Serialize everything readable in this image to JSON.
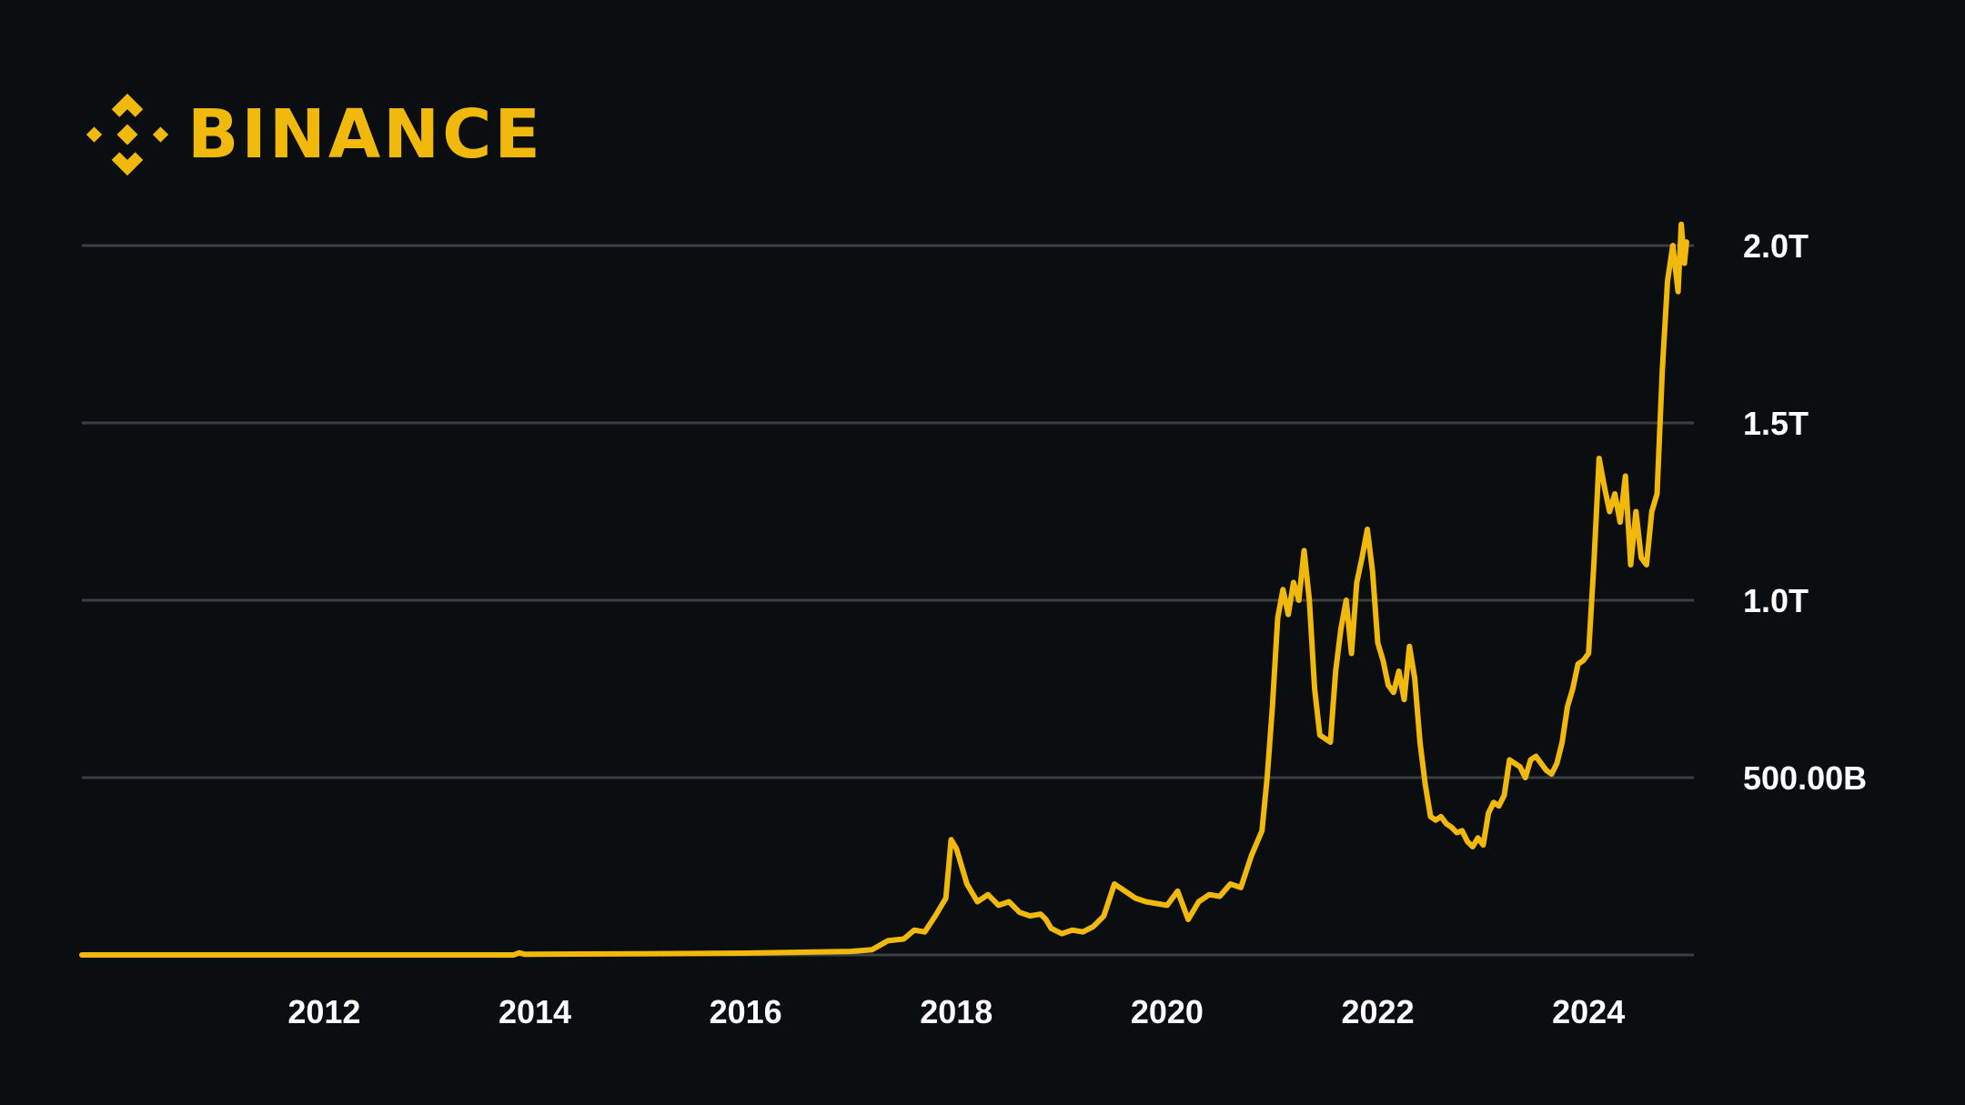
{
  "brand": {
    "name": "BINANCE",
    "accent_color": "#f0b90b",
    "icon": "binance-diamond-icon"
  },
  "theme": {
    "background": "#0b0e11",
    "gridline": "#3b3f45",
    "line": "#f0b90b",
    "text": "#ffffff"
  },
  "chart_data": {
    "type": "line",
    "title": "",
    "xlabel": "",
    "ylabel": "",
    "xlim": [
      2009.7,
      2025.0
    ],
    "ylim": [
      0,
      2000
    ],
    "y_unit": "billions",
    "grid": true,
    "legend": "none",
    "x_ticks": [
      {
        "value": 2012,
        "label": "2012"
      },
      {
        "value": 2014,
        "label": "2014"
      },
      {
        "value": 2016,
        "label": "2016"
      },
      {
        "value": 2018,
        "label": "2018"
      },
      {
        "value": 2020,
        "label": "2020"
      },
      {
        "value": 2022,
        "label": "2022"
      },
      {
        "value": 2024,
        "label": "2024"
      }
    ],
    "y_ticks": [
      {
        "value": 500,
        "label": "500.00B"
      },
      {
        "value": 1000,
        "label": "1.0T"
      },
      {
        "value": 1500,
        "label": "1.5T"
      },
      {
        "value": 2000,
        "label": "2.0T"
      }
    ],
    "series": [
      {
        "color": "#f0b90b",
        "points": [
          [
            2009.7,
            0
          ],
          [
            2012.0,
            0
          ],
          [
            2013.8,
            0
          ],
          [
            2013.85,
            6
          ],
          [
            2013.9,
            2
          ],
          [
            2015.0,
            3
          ],
          [
            2016.0,
            5
          ],
          [
            2017.0,
            10
          ],
          [
            2017.2,
            15
          ],
          [
            2017.35,
            40
          ],
          [
            2017.5,
            45
          ],
          [
            2017.6,
            70
          ],
          [
            2017.7,
            65
          ],
          [
            2017.8,
            110
          ],
          [
            2017.9,
            160
          ],
          [
            2017.95,
            325
          ],
          [
            2018.0,
            300
          ],
          [
            2018.1,
            200
          ],
          [
            2018.2,
            150
          ],
          [
            2018.3,
            170
          ],
          [
            2018.4,
            140
          ],
          [
            2018.5,
            150
          ],
          [
            2018.6,
            120
          ],
          [
            2018.7,
            110
          ],
          [
            2018.8,
            115
          ],
          [
            2018.85,
            100
          ],
          [
            2018.9,
            75
          ],
          [
            2019.0,
            60
          ],
          [
            2019.1,
            70
          ],
          [
            2019.2,
            65
          ],
          [
            2019.3,
            80
          ],
          [
            2019.4,
            110
          ],
          [
            2019.5,
            200
          ],
          [
            2019.6,
            180
          ],
          [
            2019.7,
            160
          ],
          [
            2019.8,
            150
          ],
          [
            2019.9,
            145
          ],
          [
            2020.0,
            140
          ],
          [
            2020.1,
            180
          ],
          [
            2020.2,
            100
          ],
          [
            2020.3,
            150
          ],
          [
            2020.4,
            170
          ],
          [
            2020.5,
            165
          ],
          [
            2020.6,
            200
          ],
          [
            2020.7,
            190
          ],
          [
            2020.8,
            280
          ],
          [
            2020.9,
            350
          ],
          [
            2020.95,
            500
          ],
          [
            2021.0,
            700
          ],
          [
            2021.05,
            950
          ],
          [
            2021.1,
            1030
          ],
          [
            2021.15,
            960
          ],
          [
            2021.2,
            1050
          ],
          [
            2021.25,
            1000
          ],
          [
            2021.3,
            1140
          ],
          [
            2021.35,
            1000
          ],
          [
            2021.4,
            750
          ],
          [
            2021.45,
            620
          ],
          [
            2021.5,
            610
          ],
          [
            2021.55,
            600
          ],
          [
            2021.6,
            800
          ],
          [
            2021.65,
            920
          ],
          [
            2021.7,
            1000
          ],
          [
            2021.75,
            850
          ],
          [
            2021.8,
            1050
          ],
          [
            2021.85,
            1120
          ],
          [
            2021.9,
            1200
          ],
          [
            2021.95,
            1080
          ],
          [
            2022.0,
            880
          ],
          [
            2022.05,
            830
          ],
          [
            2022.1,
            760
          ],
          [
            2022.15,
            740
          ],
          [
            2022.2,
            800
          ],
          [
            2022.25,
            720
          ],
          [
            2022.3,
            870
          ],
          [
            2022.35,
            780
          ],
          [
            2022.4,
            600
          ],
          [
            2022.45,
            480
          ],
          [
            2022.5,
            390
          ],
          [
            2022.55,
            380
          ],
          [
            2022.6,
            390
          ],
          [
            2022.65,
            370
          ],
          [
            2022.7,
            360
          ],
          [
            2022.75,
            345
          ],
          [
            2022.8,
            350
          ],
          [
            2022.85,
            320
          ],
          [
            2022.9,
            305
          ],
          [
            2022.95,
            330
          ],
          [
            2023.0,
            310
          ],
          [
            2023.05,
            400
          ],
          [
            2023.1,
            430
          ],
          [
            2023.15,
            420
          ],
          [
            2023.2,
            450
          ],
          [
            2023.25,
            550
          ],
          [
            2023.3,
            540
          ],
          [
            2023.35,
            530
          ],
          [
            2023.4,
            500
          ],
          [
            2023.45,
            550
          ],
          [
            2023.5,
            560
          ],
          [
            2023.55,
            540
          ],
          [
            2023.6,
            520
          ],
          [
            2023.65,
            510
          ],
          [
            2023.7,
            540
          ],
          [
            2023.75,
            600
          ],
          [
            2023.8,
            700
          ],
          [
            2023.85,
            750
          ],
          [
            2023.9,
            820
          ],
          [
            2023.95,
            830
          ],
          [
            2024.0,
            850
          ],
          [
            2024.05,
            1100
          ],
          [
            2024.1,
            1400
          ],
          [
            2024.15,
            1320
          ],
          [
            2024.2,
            1250
          ],
          [
            2024.25,
            1300
          ],
          [
            2024.3,
            1220
          ],
          [
            2024.35,
            1350
          ],
          [
            2024.4,
            1100
          ],
          [
            2024.45,
            1250
          ],
          [
            2024.5,
            1120
          ],
          [
            2024.55,
            1100
          ],
          [
            2024.6,
            1250
          ],
          [
            2024.65,
            1300
          ],
          [
            2024.7,
            1650
          ],
          [
            2024.75,
            1900
          ],
          [
            2024.8,
            2000
          ],
          [
            2024.85,
            1870
          ],
          [
            2024.88,
            2060
          ],
          [
            2024.91,
            1950
          ],
          [
            2024.93,
            2010
          ]
        ]
      }
    ]
  }
}
